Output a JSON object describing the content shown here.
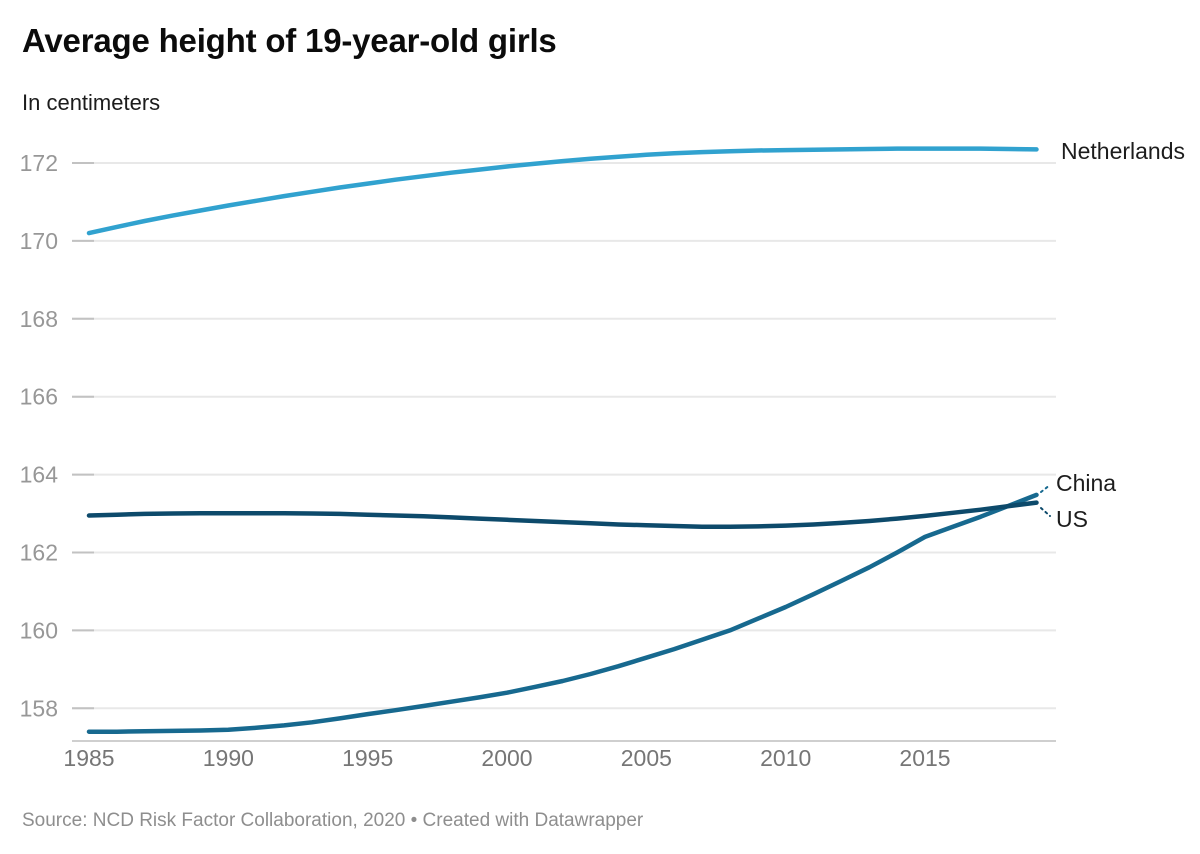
{
  "header": {
    "title": "Average height of 19-year-old girls",
    "subtitle": "In centimeters"
  },
  "footer": {
    "source": "Source: NCD Risk Factor Collaboration, 2020 • Created with Datawrapper"
  },
  "colors": {
    "netherlands_line": "#31a2cf",
    "china_line": "#17698f",
    "us_line": "#0d4a6b",
    "gridline": "#e8e8e8",
    "tick": "#c2c2c2",
    "axis_baseline": "#cfcfcf",
    "y_label": "#979797",
    "x_label": "#767676",
    "series_label": "#1d1d1d"
  },
  "chart_data": {
    "type": "line",
    "title": "Average height of 19-year-old girls",
    "subtitle": "In centimeters",
    "unit": "cm",
    "grid": "horizontal",
    "legend_position": "line-end-labels",
    "xlim": [
      1985,
      2019
    ],
    "ylim": [
      157.1,
      172.6
    ],
    "xticks": [
      1985,
      1990,
      1995,
      2000,
      2005,
      2010,
      2015
    ],
    "yticks": [
      158,
      160,
      162,
      164,
      166,
      168,
      170,
      172
    ],
    "x": [
      1985,
      1986,
      1987,
      1988,
      1989,
      1990,
      1991,
      1992,
      1993,
      1994,
      1995,
      1996,
      1997,
      1998,
      1999,
      2000,
      2001,
      2002,
      2003,
      2004,
      2005,
      2006,
      2007,
      2008,
      2009,
      2010,
      2011,
      2012,
      2013,
      2014,
      2015,
      2016,
      2017,
      2018,
      2019
    ],
    "series": [
      {
        "name": "Netherlands",
        "color": "#31a2cf",
        "values": [
          170.2,
          170.36,
          170.51,
          170.65,
          170.78,
          170.91,
          171.03,
          171.15,
          171.26,
          171.37,
          171.47,
          171.57,
          171.66,
          171.75,
          171.83,
          171.91,
          171.98,
          172.05,
          172.11,
          172.16,
          172.21,
          172.25,
          172.28,
          172.3,
          172.32,
          172.33,
          172.34,
          172.35,
          172.36,
          172.37,
          172.37,
          172.37,
          172.37,
          172.36,
          172.35
        ]
      },
      {
        "name": "China",
        "color": "#17698f",
        "values": [
          157.4,
          157.4,
          157.41,
          157.42,
          157.43,
          157.45,
          157.5,
          157.56,
          157.64,
          157.74,
          157.85,
          157.95,
          158.06,
          158.17,
          158.28,
          158.4,
          158.55,
          158.7,
          158.88,
          159.08,
          159.3,
          159.52,
          159.76,
          160.0,
          160.3,
          160.6,
          160.93,
          161.27,
          161.62,
          162.0,
          162.4,
          162.66,
          162.92,
          163.2,
          163.48
        ]
      },
      {
        "name": "US",
        "color": "#0d4a6b",
        "values": [
          162.95,
          162.97,
          162.99,
          163.0,
          163.01,
          163.01,
          163.01,
          163.01,
          163.0,
          162.99,
          162.97,
          162.95,
          162.93,
          162.9,
          162.87,
          162.84,
          162.81,
          162.78,
          162.75,
          162.72,
          162.7,
          162.68,
          162.66,
          162.66,
          162.67,
          162.69,
          162.72,
          162.76,
          162.81,
          162.87,
          162.94,
          163.02,
          163.1,
          163.19,
          163.28
        ]
      }
    ]
  }
}
